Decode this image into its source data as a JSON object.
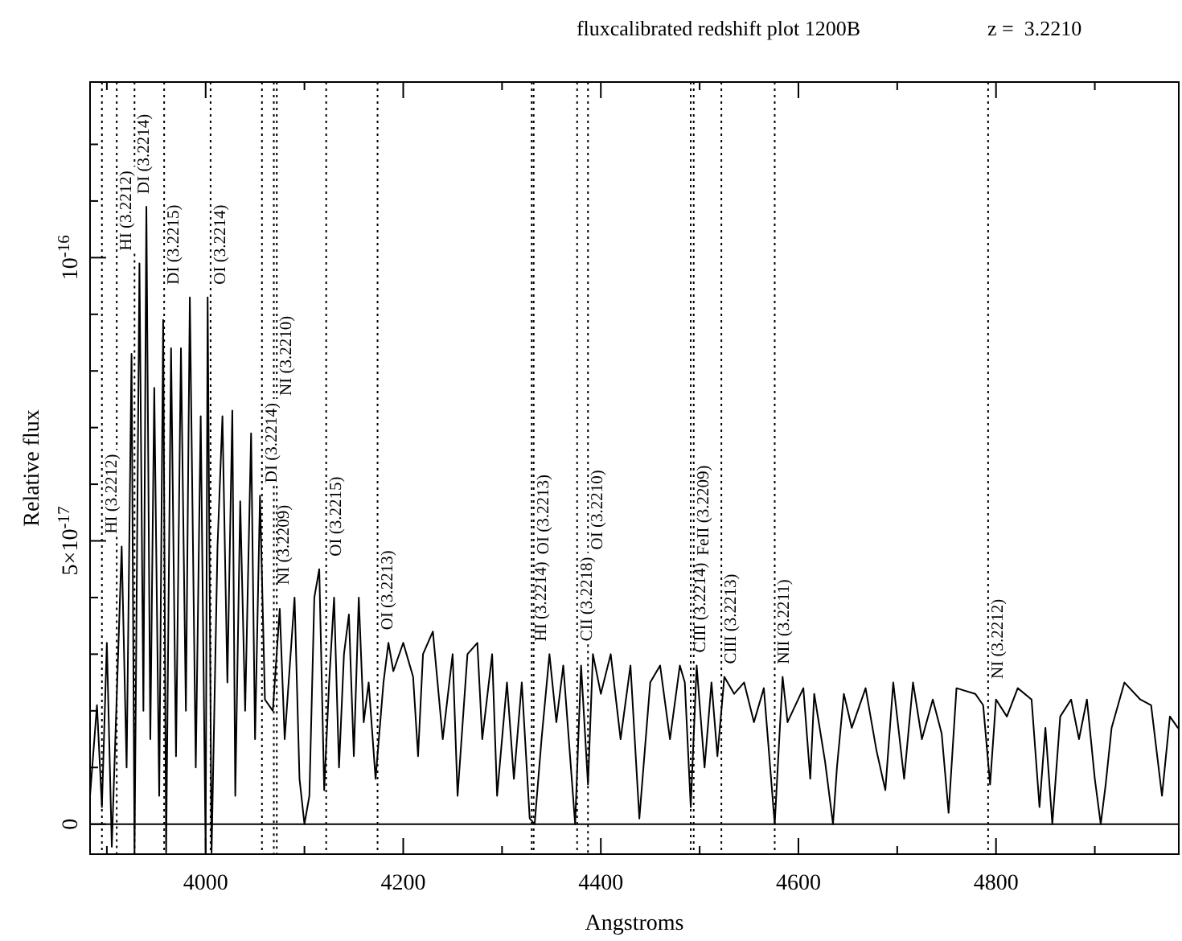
{
  "chart_data": {
    "type": "line",
    "title": "fluxcalibrated redshift plot 1200B",
    "subtitle": "z =  3.2210",
    "xlabel": "Angstroms",
    "ylabel": "Relative flux",
    "x": [
      3883,
      3890,
      3895,
      3900,
      3905,
      3915,
      3920,
      3925,
      3928,
      3933,
      3937,
      3940,
      3944,
      3948,
      3953,
      3957,
      3960,
      3965,
      3970,
      3975,
      3980,
      3984,
      3990,
      3995,
      4000,
      4002,
      4006,
      4012,
      4017,
      4022,
      4027,
      4030,
      4035,
      4040,
      4046,
      4050,
      4055,
      4060,
      4068,
      4075,
      4080,
      4090,
      4095,
      4100,
      4105,
      4110,
      4115,
      4120,
      4125,
      4130,
      4135,
      4140,
      4145,
      4150,
      4155,
      4160,
      4165,
      4172,
      4180,
      4185,
      4190,
      4200,
      4210,
      4215,
      4220,
      4230,
      4240,
      4250,
      4255,
      4265,
      4275,
      4280,
      4290,
      4295,
      4305,
      4312,
      4320,
      4328,
      4333,
      4340,
      4348,
      4355,
      4362,
      4374,
      4380,
      4387,
      4392,
      4400,
      4410,
      4420,
      4430,
      4439,
      4450,
      4460,
      4470,
      4480,
      4485,
      4491,
      4497,
      4505,
      4512,
      4518,
      4525,
      4535,
      4545,
      4555,
      4565,
      4576,
      4584,
      4589,
      4605,
      4612,
      4616,
      4627,
      4635,
      4639,
      4646,
      4654,
      4668,
      4679,
      4688,
      4696,
      4707,
      4716,
      4725,
      4736,
      4745,
      4752,
      4760,
      4779,
      4787,
      4794,
      4800,
      4811,
      4822,
      4836,
      4844,
      4850,
      4857,
      4865,
      4876,
      4884,
      4892,
      4900,
      4906,
      4911,
      4917,
      4930,
      4946,
      4957,
      4968,
      4976,
      4984
    ],
    "series": [
      {
        "color": "#000000",
        "values": [
          5e-18,
          2.1e-17,
          3e-18,
          3.2e-17,
          -4e-18,
          4.9e-17,
          1e-17,
          8.3e-17,
          -5e-18,
          9.9e-17,
          2e-17,
          1.09e-16,
          1.5e-17,
          7.7e-17,
          5e-18,
          8.9e-17,
          -5e-18,
          8.4e-17,
          1.2e-17,
          8.4e-17,
          2e-17,
          9.3e-17,
          1e-17,
          7.2e-17,
          -5e-18,
          9.3e-17,
          -5e-18,
          4.9e-17,
          7.2e-17,
          2.5e-17,
          7.3e-17,
          5e-18,
          5.7e-17,
          2e-17,
          6.9e-17,
          1.5e-17,
          5.8e-17,
          2.2e-17,
          2e-17,
          3.8e-17,
          1.5e-17,
          4e-17,
          8e-18,
          0,
          5e-18,
          4e-17,
          4.5e-17,
          6e-18,
          2.5e-17,
          4e-17,
          1e-17,
          3e-17,
          3.7e-17,
          1.2e-17,
          4e-17,
          1.8e-17,
          2.5e-17,
          8e-18,
          2.5e-17,
          3.2e-17,
          2.7e-17,
          3.2e-17,
          2.6e-17,
          1.2e-17,
          3e-17,
          3.4e-17,
          1.5e-17,
          3e-17,
          5e-18,
          3e-17,
          3.2e-17,
          1.5e-17,
          3e-17,
          5e-18,
          2.5e-17,
          8e-18,
          2.5e-17,
          1e-18,
          0,
          1.5e-17,
          3e-17,
          1.8e-17,
          2.8e-17,
          0,
          2.8e-17,
          7e-18,
          3e-17,
          2.3e-17,
          3e-17,
          1.5e-17,
          2.8e-17,
          1e-18,
          2.5e-17,
          2.8e-17,
          1.5e-17,
          2.8e-17,
          2.5e-17,
          3e-18,
          2.8e-17,
          1e-17,
          2.5e-17,
          1.2e-17,
          2.6e-17,
          2.3e-17,
          2.5e-17,
          1.8e-17,
          2.4e-17,
          0,
          2.6e-17,
          1.8e-17,
          2.4e-17,
          8e-18,
          2.3e-17,
          1.1e-17,
          0,
          1e-17,
          2.3e-17,
          1.7e-17,
          2.4e-17,
          1.3e-17,
          6e-18,
          2.5e-17,
          8e-18,
          2.5e-17,
          1.5e-17,
          2.2e-17,
          1.6e-17,
          2e-18,
          2.4e-17,
          2.3e-17,
          2.1e-17,
          7e-18,
          2.2e-17,
          1.9e-17,
          2.4e-17,
          2.2e-17,
          3e-18,
          1.7e-17,
          0,
          1.9e-17,
          2.2e-17,
          1.5e-17,
          2.2e-17,
          8e-18,
          0,
          7e-18,
          1.7e-17,
          2.5e-17,
          2.2e-17,
          2.1e-17,
          5e-18,
          1.9e-17,
          1.7e-17
        ]
      }
    ],
    "xlim": [
      3883,
      4985
    ],
    "ylim": [
      -5.3e-18,
      1.31e-16
    ],
    "xticks": [
      {
        "value": 3900,
        "label": null
      },
      4000,
      {
        "value": 4100,
        "label": null
      },
      4200,
      {
        "value": 4300,
        "label": null
      },
      4400,
      {
        "value": 4500,
        "label": null
      },
      4600,
      {
        "value": 4700,
        "label": null
      },
      4800,
      {
        "value": 4900,
        "label": null
      }
    ],
    "yticks": [
      0,
      {
        "value": 1e-17,
        "label": null
      },
      {
        "value": 2e-17,
        "label": null
      },
      {
        "value": 3e-17,
        "label": null
      },
      {
        "value": 4e-17,
        "label": null
      },
      {
        "value": 5e-17,
        "label": "5×10$^{-17}$"
      },
      {
        "value": 6e-17,
        "label": null
      },
      {
        "value": 7e-17,
        "label": null
      },
      {
        "value": 8e-17,
        "label": null
      },
      {
        "value": 9e-17,
        "label": null
      },
      {
        "value": 1e-16,
        "label": "10$^{-16}$"
      },
      {
        "value": 1.1e-16,
        "label": null
      },
      {
        "value": 1.2e-16,
        "label": null
      }
    ],
    "marker": "none",
    "line_style": "solid",
    "grid": false,
    "ref_lines": [
      {
        "axis": "y",
        "value": 0,
        "line_style": "solid"
      },
      {
        "axis": "x",
        "value": 3895,
        "label": "HI (3.2212)",
        "line_style": "dotted"
      },
      {
        "axis": "x",
        "value": 3910,
        "label": "HI (3.2212)",
        "line_style": "dotted"
      },
      {
        "axis": "x",
        "value": 3928,
        "label": "DI (3.2214)",
        "line_style": "dotted"
      },
      {
        "axis": "x",
        "value": 3958,
        "label": "DI (3.2215)",
        "line_style": "dotted"
      },
      {
        "axis": "x",
        "value": 4005,
        "label": "OI (3.2214)",
        "line_style": "dotted"
      },
      {
        "axis": "x",
        "value": 4057,
        "label": "DI (3.2214)",
        "line_style": "dotted"
      },
      {
        "axis": "x",
        "value": 4069,
        "label": "NI (3.2209)",
        "line_style": "dotted"
      },
      {
        "axis": "x",
        "value": 4072,
        "label": "NI (3.2210)",
        "line_style": "dotted"
      },
      {
        "axis": "x",
        "value": 4122,
        "label": "OI (3.2215)",
        "line_style": "dotted"
      },
      {
        "axis": "x",
        "value": 4174,
        "label": "OI (3.2213)",
        "line_style": "dotted"
      },
      {
        "axis": "x",
        "value": 4330,
        "label": "HI (3.2214)",
        "line_style": "dotted"
      },
      {
        "axis": "x",
        "value": 4332,
        "label": "OI (3.2213)",
        "line_style": "dotted"
      },
      {
        "axis": "x",
        "value": 4376,
        "label": "CII (3.2218)",
        "line_style": "dotted"
      },
      {
        "axis": "x",
        "value": 4387,
        "label": "OI (3.2210)",
        "line_style": "dotted"
      },
      {
        "axis": "x",
        "value": 4491,
        "label": "CIII (3.2214)",
        "line_style": "dotted"
      },
      {
        "axis": "x",
        "value": 4494,
        "label": "FeII (3.2209)",
        "line_style": "dotted"
      },
      {
        "axis": "x",
        "value": 4522,
        "label": "CIII (3.2213)",
        "line_style": "dotted"
      },
      {
        "axis": "x",
        "value": 4576,
        "label": "NII (3.2211)",
        "line_style": "dotted"
      },
      {
        "axis": "x",
        "value": 4792,
        "label": "NI (3.2212)",
        "line_style": "dotted"
      }
    ]
  }
}
